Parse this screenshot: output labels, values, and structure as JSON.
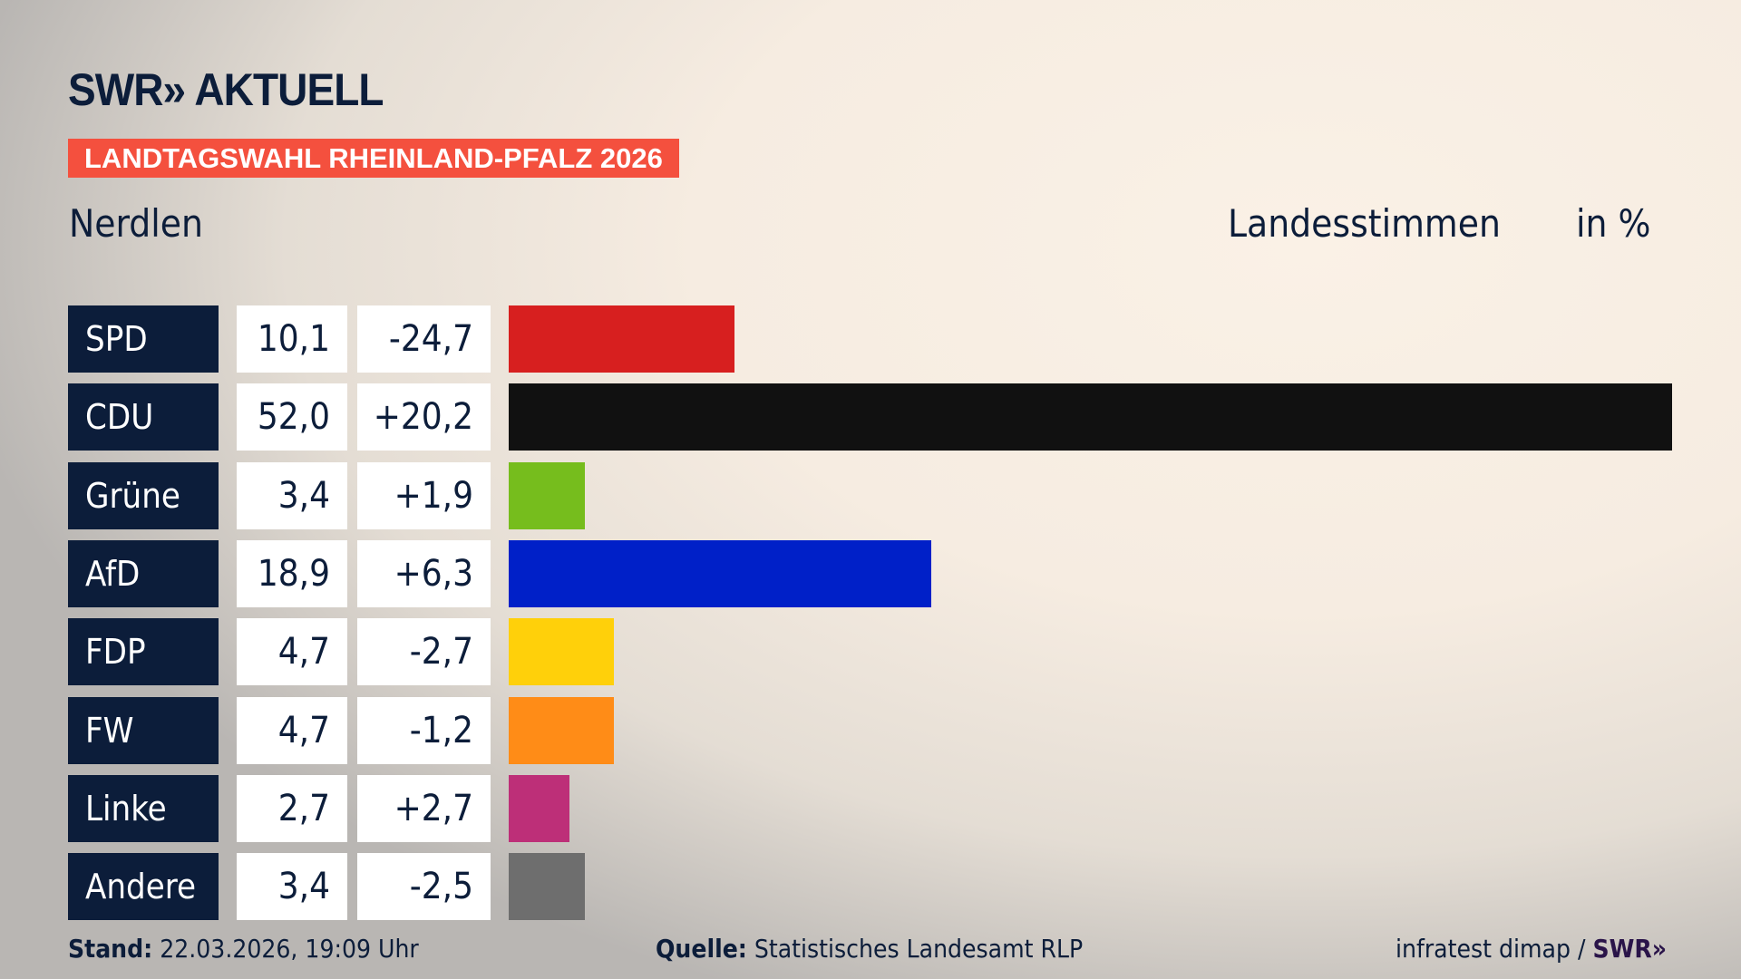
{
  "logo": "SWR» AKTUELL",
  "banner": "LANDTAGSWAHL RHEINLAND-PFALZ 2026",
  "location": "Nerdlen",
  "header_votes": "Landesstimmen",
  "header_unit": "in %",
  "chart_data": {
    "type": "bar",
    "orientation": "horizontal",
    "categories": [
      "SPD",
      "CDU",
      "Grüne",
      "AfD",
      "FDP",
      "FW",
      "Linke",
      "Andere"
    ],
    "values": [
      10.1,
      52.0,
      3.4,
      18.9,
      4.7,
      4.7,
      2.7,
      3.4
    ],
    "value_labels": [
      "10,1",
      "52,0",
      "3,4",
      "18,9",
      "4,7",
      "4,7",
      "2,7",
      "3,4"
    ],
    "diff_labels": [
      "-24,7",
      "+20,2",
      "+1,9",
      "+6,3",
      "-2,7",
      "-1,2",
      "+2,7",
      "-2,5"
    ],
    "colors": [
      "#d71f1f",
      "#111111",
      "#76bd1d",
      "#0020c8",
      "#ffd00a",
      "#ff8c17",
      "#bd2f78",
      "#6e6e6e"
    ],
    "xlim": [
      0,
      52.0
    ]
  },
  "footer": {
    "stand_label": "Stand:",
    "stand_value": "22.03.2026, 19:09 Uhr",
    "source_label": "Quelle:",
    "source_value": "Statistisches Landesamt RLP",
    "credit": "infratest dimap /",
    "credit_brand": "SWR»"
  }
}
